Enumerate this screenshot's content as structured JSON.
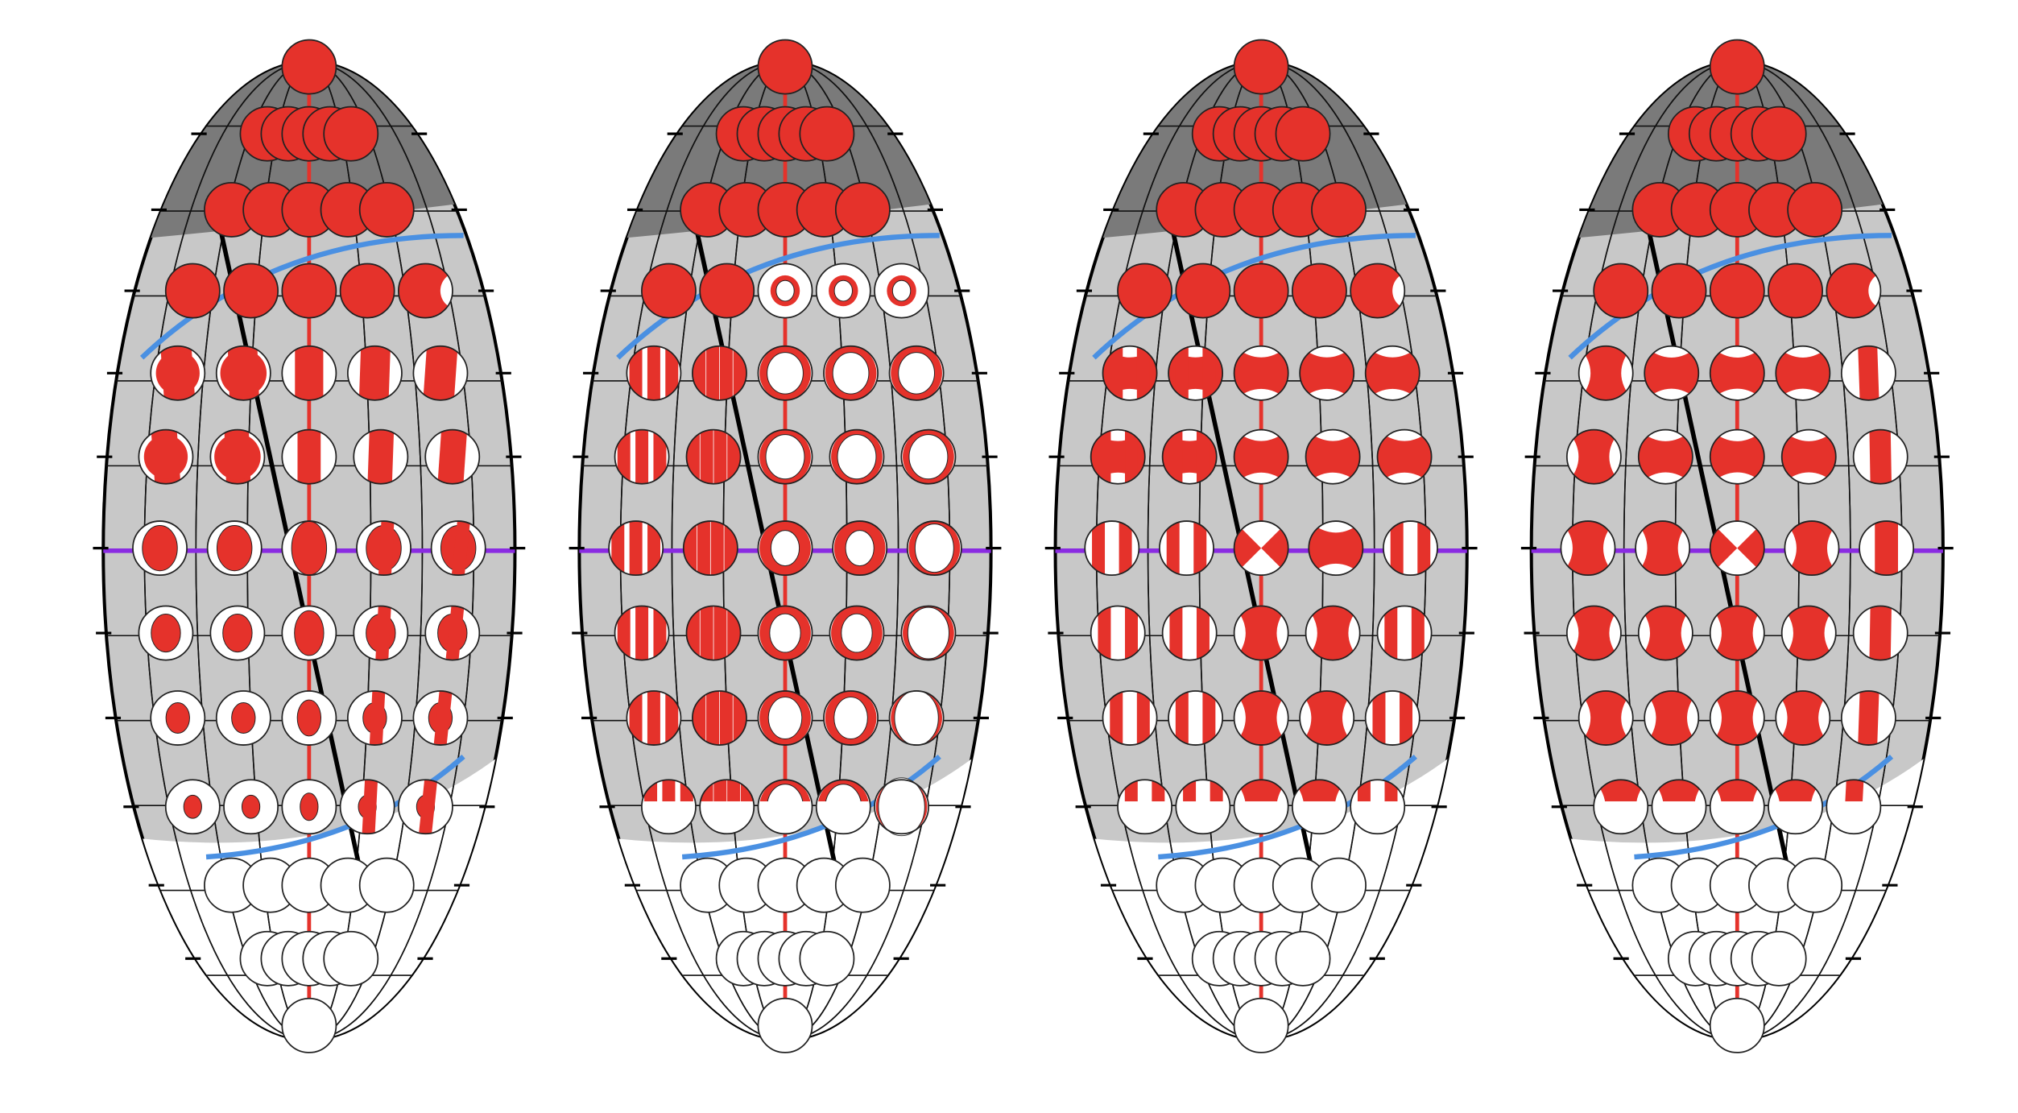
{
  "colors": {
    "fill": "#e5322b",
    "outline": "#222222",
    "grid_light": "#c8c8c8",
    "grid_dark": "#7a7a7a",
    "grid_line": "#111111",
    "meridian": "#e5322b",
    "equator": "#8a2be2",
    "boundary": "#4a90e2"
  },
  "panels": [
    {
      "id": "panel-1",
      "pattern": "dot"
    },
    {
      "id": "panel-2",
      "pattern": "ring"
    },
    {
      "id": "panel-3",
      "pattern": "bow"
    },
    {
      "id": "panel-4",
      "pattern": "cross"
    }
  ]
}
